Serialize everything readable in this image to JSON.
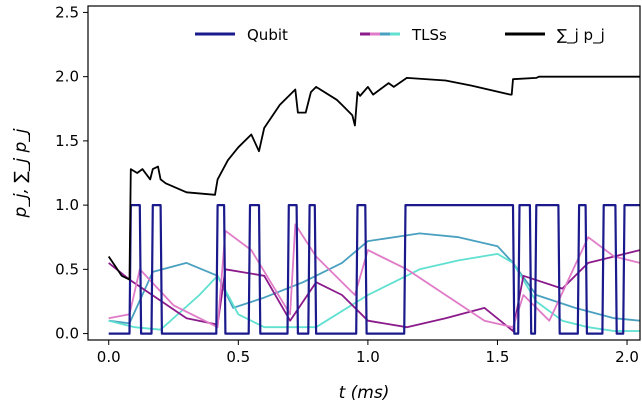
{
  "chart_data": {
    "type": "line",
    "xlabel": "t (ms)",
    "ylabel": "p_j, ∑_j p_j",
    "xlim": [
      -0.08,
      2.05
    ],
    "ylim": [
      -0.05,
      2.55
    ],
    "xticks": [
      0.0,
      0.5,
      1.0,
      1.5,
      2.0
    ],
    "xtick_labels": [
      "0.0",
      "0.5",
      "1.0",
      "1.5",
      "2.0"
    ],
    "yticks": [
      0.0,
      0.5,
      1.0,
      1.5,
      2.0,
      2.5
    ],
    "ytick_labels": [
      "0.0",
      "0.5",
      "1.0",
      "1.5",
      "2.0",
      "2.5"
    ],
    "grid": false,
    "legend": {
      "placement": "top",
      "entries": [
        {
          "label": "Qubit",
          "color": "#1a1a8c"
        },
        {
          "label": "TLSs",
          "colors": [
            "#8b1a8b",
            "#e07bc8",
            "#4aa0c0",
            "#5fe0d0"
          ]
        },
        {
          "label": "∑_j p_j",
          "color": "#000000"
        }
      ]
    },
    "series": [
      {
        "legend_label": "Qubit",
        "color": "#1a1a8c",
        "x": [
          0.0,
          0.08,
          0.085,
          0.12,
          0.125,
          0.165,
          0.17,
          0.2,
          0.205,
          0.415,
          0.42,
          0.445,
          0.45,
          0.54,
          0.545,
          0.58,
          0.585,
          0.69,
          0.695,
          0.725,
          0.73,
          0.77,
          0.775,
          0.795,
          0.8,
          0.955,
          0.96,
          0.99,
          0.995,
          1.14,
          1.145,
          1.56,
          1.565,
          1.58,
          1.585,
          1.625,
          1.63,
          1.645,
          1.65,
          1.735,
          1.74,
          1.81,
          1.815,
          1.84,
          1.845,
          1.905,
          1.91,
          1.955,
          1.96,
          1.985,
          1.99,
          2.05
        ],
        "y": [
          0.0,
          0.0,
          1.0,
          1.0,
          0.0,
          0.0,
          1.0,
          1.0,
          0.0,
          0.0,
          1.0,
          1.0,
          0.0,
          0.0,
          1.0,
          1.0,
          0.0,
          0.0,
          1.0,
          1.0,
          0.0,
          0.0,
          1.0,
          1.0,
          0.0,
          0.0,
          1.0,
          1.0,
          0.0,
          0.0,
          1.0,
          1.0,
          0.0,
          0.0,
          1.0,
          1.0,
          0.0,
          0.0,
          1.0,
          1.0,
          0.0,
          0.0,
          1.0,
          1.0,
          0.0,
          0.0,
          1.0,
          1.0,
          0.0,
          0.0,
          1.0,
          1.0
        ]
      },
      {
        "legend_label": "TLSs",
        "color": "#8b1a8b",
        "x": [
          0.0,
          0.08,
          0.3,
          0.42,
          0.45,
          0.6,
          0.7,
          0.8,
          0.9,
          1.0,
          1.15,
          1.3,
          1.45,
          1.56,
          1.6,
          1.75,
          1.85,
          1.95,
          2.05
        ],
        "y": [
          0.55,
          0.42,
          0.12,
          0.07,
          0.5,
          0.45,
          0.1,
          0.4,
          0.3,
          0.1,
          0.05,
          0.12,
          0.2,
          0.02,
          0.45,
          0.35,
          0.55,
          0.6,
          0.65
        ]
      },
      {
        "legend_label": "TLSs",
        "color": "#e07bc8",
        "x": [
          0.0,
          0.08,
          0.12,
          0.25,
          0.42,
          0.45,
          0.55,
          0.7,
          0.72,
          0.8,
          0.95,
          1.0,
          1.15,
          1.3,
          1.45,
          1.56,
          1.6,
          1.7,
          1.85,
          1.95,
          2.05
        ],
        "y": [
          0.12,
          0.15,
          0.5,
          0.22,
          0.05,
          0.8,
          0.65,
          0.15,
          0.85,
          0.6,
          0.3,
          0.65,
          0.5,
          0.3,
          0.1,
          0.05,
          0.3,
          0.1,
          0.75,
          0.6,
          0.55
        ]
      },
      {
        "legend_label": "TLSs",
        "color": "#4aa0c0",
        "x": [
          0.0,
          0.08,
          0.17,
          0.3,
          0.42,
          0.48,
          0.6,
          0.75,
          0.9,
          1.0,
          1.2,
          1.35,
          1.5,
          1.56,
          1.65,
          1.8,
          1.95,
          2.05
        ],
        "y": [
          0.1,
          0.08,
          0.48,
          0.55,
          0.45,
          0.2,
          0.28,
          0.4,
          0.55,
          0.72,
          0.78,
          0.75,
          0.68,
          0.55,
          0.3,
          0.2,
          0.12,
          0.1
        ]
      },
      {
        "legend_label": "TLSs",
        "color": "#5fe0d0",
        "x": [
          0.0,
          0.1,
          0.2,
          0.35,
          0.42,
          0.5,
          0.6,
          0.8,
          1.0,
          1.2,
          1.35,
          1.5,
          1.56,
          1.65,
          1.75,
          1.85,
          1.95,
          2.05
        ],
        "y": [
          0.1,
          0.05,
          0.03,
          0.3,
          0.45,
          0.15,
          0.05,
          0.05,
          0.3,
          0.5,
          0.57,
          0.62,
          0.55,
          0.25,
          0.1,
          0.05,
          0.02,
          0.02
        ]
      },
      {
        "legend_label": "∑_j p_j",
        "color": "#000000",
        "x": [
          0.0,
          0.05,
          0.08,
          0.085,
          0.11,
          0.13,
          0.16,
          0.17,
          0.19,
          0.2,
          0.22,
          0.3,
          0.41,
          0.42,
          0.46,
          0.5,
          0.55,
          0.58,
          0.6,
          0.66,
          0.72,
          0.73,
          0.76,
          0.78,
          0.8,
          0.88,
          0.9,
          0.94,
          0.95,
          0.96,
          0.97,
          1.0,
          1.02,
          1.08,
          1.1,
          1.15,
          1.3,
          1.4,
          1.55,
          1.555,
          1.56,
          1.65,
          1.66,
          1.7,
          2.05
        ],
        "y": [
          0.6,
          0.45,
          0.42,
          1.28,
          1.25,
          1.28,
          1.2,
          1.28,
          1.3,
          1.2,
          1.17,
          1.1,
          1.08,
          1.2,
          1.35,
          1.45,
          1.55,
          1.42,
          1.6,
          1.78,
          1.9,
          1.72,
          1.72,
          1.88,
          1.92,
          1.82,
          1.78,
          1.7,
          1.62,
          1.88,
          1.85,
          1.92,
          1.86,
          1.95,
          1.92,
          1.99,
          1.97,
          1.93,
          1.86,
          1.86,
          1.98,
          1.99,
          2.0,
          2.0,
          2.0
        ]
      }
    ]
  }
}
